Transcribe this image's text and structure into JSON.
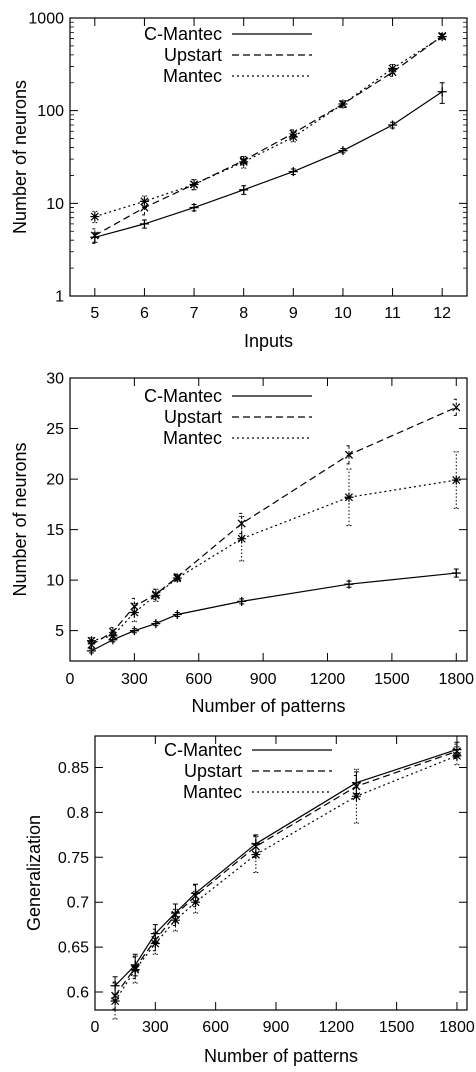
{
  "chart_data": [
    {
      "type": "line",
      "xlabel": "Inputs",
      "ylabel": "Number of neurons",
      "yscale": "log",
      "xlim": [
        4.5,
        12.5
      ],
      "ylim": [
        1,
        1000
      ],
      "x_ticks": [
        5,
        6,
        7,
        8,
        9,
        10,
        11,
        12
      ],
      "x_tick_labels": [
        "5",
        "6",
        "7",
        "8",
        "9",
        "10",
        "11",
        "12"
      ],
      "y_ticks": [
        1,
        10,
        100,
        1000
      ],
      "y_tick_labels": [
        "1",
        "10",
        "100",
        "1000"
      ],
      "legend_position": "top-left",
      "x": [
        5,
        6,
        7,
        8,
        9,
        10,
        11,
        12
      ],
      "series": [
        {
          "name": "C-Mantec",
          "line": "solid",
          "marker": "plus",
          "values": [
            4.3,
            6.0,
            9.0,
            14,
            22,
            37,
            70,
            160
          ],
          "err": [
            0.5,
            0.6,
            0.7,
            1.5,
            1.5,
            2,
            5,
            40
          ]
        },
        {
          "name": "Upstart",
          "line": "dashed",
          "marker": "cross",
          "values": [
            4.5,
            9.0,
            16,
            29,
            57,
            118,
            260,
            640
          ],
          "err": [
            0.8,
            1.5,
            2,
            3,
            5,
            8,
            25,
            40
          ]
        },
        {
          "name": "Mantec",
          "line": "dotted",
          "marker": "star",
          "values": [
            7.2,
            10.5,
            16,
            28,
            52,
            118,
            285,
            630
          ],
          "err": [
            1,
            1.5,
            2,
            4,
            6,
            10,
            30,
            40
          ]
        }
      ]
    },
    {
      "type": "line",
      "xlabel": "Number of patterns",
      "ylabel": "Number of neurons",
      "xlim": [
        0,
        1850
      ],
      "ylim": [
        2,
        30
      ],
      "x_ticks": [
        0,
        300,
        600,
        900,
        1200,
        1500,
        1800
      ],
      "x_tick_labels": [
        "0",
        "300",
        "600",
        "900",
        "1200",
        "1500",
        "1800"
      ],
      "y_ticks": [
        5,
        10,
        15,
        20,
        25,
        30
      ],
      "y_tick_labels": [
        "5",
        "10",
        "15",
        "20",
        "25",
        "30"
      ],
      "legend_position": "top-left",
      "x": [
        100,
        200,
        300,
        400,
        500,
        800,
        1300,
        1800
      ],
      "series": [
        {
          "name": "C-Mantec",
          "line": "solid",
          "marker": "plus",
          "values": [
            3.0,
            4.1,
            5.0,
            5.7,
            6.6,
            7.9,
            9.6,
            10.7
          ],
          "err": [
            0.2,
            0.2,
            0.2,
            0.2,
            0.2,
            0.25,
            0.3,
            0.4
          ]
        },
        {
          "name": "Upstart",
          "line": "dashed",
          "marker": "cross",
          "values": [
            3.6,
            4.9,
            7.4,
            8.6,
            10.3,
            15.6,
            22.4,
            27.1
          ],
          "err": [
            0.3,
            0.4,
            0.8,
            0.5,
            0.3,
            1.0,
            0.9,
            0.8
          ]
        },
        {
          "name": "Mantec",
          "line": "dotted",
          "marker": "star",
          "values": [
            4.0,
            4.5,
            6.8,
            8.5,
            10.2,
            14.1,
            18.2,
            19.9
          ],
          "err": [
            0.3,
            0.4,
            0.9,
            0.6,
            0.3,
            2.2,
            2.8,
            2.8
          ]
        }
      ]
    },
    {
      "type": "line",
      "xlabel": "Number of patterns",
      "ylabel": "Generalization",
      "xlim": [
        0,
        1850
      ],
      "ylim": [
        0.58,
        0.885
      ],
      "x_ticks": [
        0,
        300,
        600,
        900,
        1200,
        1500,
        1800
      ],
      "x_tick_labels": [
        "0",
        "300",
        "600",
        "900",
        "1200",
        "1500",
        "1800"
      ],
      "y_ticks": [
        0.6,
        0.65,
        0.7,
        0.75,
        0.8,
        0.85
      ],
      "y_tick_labels": [
        "0.6",
        "0.65",
        "0.7",
        "0.75",
        "0.8",
        "0.85"
      ],
      "legend_position": "top-left",
      "x": [
        100,
        200,
        300,
        400,
        500,
        800,
        1300,
        1800
      ],
      "series": [
        {
          "name": "C-Mantec",
          "line": "solid",
          "marker": "plus",
          "values": [
            0.607,
            0.63,
            0.665,
            0.688,
            0.71,
            0.765,
            0.833,
            0.87
          ],
          "err": [
            0.01,
            0.012,
            0.01,
            0.01,
            0.01,
            0.01,
            0.012,
            0.008
          ]
        },
        {
          "name": "Upstart",
          "line": "dashed",
          "marker": "cross",
          "values": [
            0.596,
            0.627,
            0.658,
            0.686,
            0.707,
            0.762,
            0.829,
            0.868
          ],
          "err": [
            0.015,
            0.012,
            0.012,
            0.012,
            0.012,
            0.012,
            0.012,
            0.008
          ]
        },
        {
          "name": "Mantec",
          "line": "dotted",
          "marker": "star",
          "values": [
            0.59,
            0.625,
            0.654,
            0.68,
            0.7,
            0.753,
            0.818,
            0.863
          ],
          "err": [
            0.02,
            0.015,
            0.012,
            0.012,
            0.012,
            0.02,
            0.03,
            0.01
          ]
        }
      ]
    }
  ]
}
